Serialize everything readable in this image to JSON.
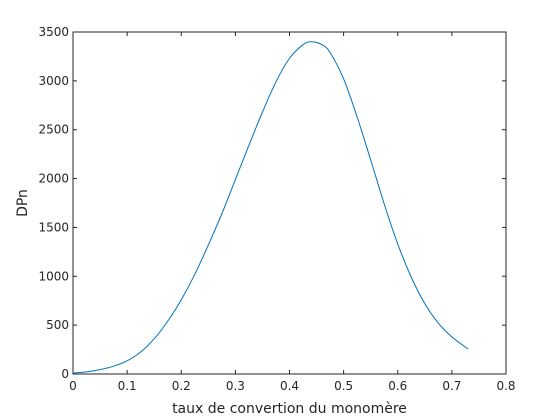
{
  "chart_data": {
    "type": "line",
    "title": "",
    "xlabel": "taux de convertion du monomère",
    "ylabel": "DPn",
    "xlim": [
      0,
      0.8
    ],
    "ylim": [
      0,
      3500
    ],
    "xticks": [
      0,
      0.1,
      0.2,
      0.3,
      0.4,
      0.5,
      0.6,
      0.7,
      0.8
    ],
    "xtick_labels": [
      "0",
      "0.1",
      "0.2",
      "0.3",
      "0.4",
      "0.5",
      "0.6",
      "0.7",
      "0.8"
    ],
    "yticks": [
      0,
      500,
      1000,
      1500,
      2000,
      2500,
      3000,
      3500
    ],
    "ytick_labels": [
      "0",
      "500",
      "1000",
      "1500",
      "2000",
      "2500",
      "3000",
      "3500"
    ],
    "grid": false,
    "line_color": "#0072bd",
    "series": [
      {
        "x": [
          0,
          0.025,
          0.05,
          0.075,
          0.1,
          0.125,
          0.15,
          0.175,
          0.2,
          0.225,
          0.25,
          0.275,
          0.3,
          0.325,
          0.35,
          0.375,
          0.4,
          0.425,
          0.44,
          0.46,
          0.475,
          0.5,
          0.525,
          0.55,
          0.575,
          0.6,
          0.625,
          0.65,
          0.675,
          0.7,
          0.73
        ],
        "y": [
          10,
          22,
          45,
          80,
          135,
          225,
          360,
          540,
          760,
          1020,
          1320,
          1640,
          1990,
          2340,
          2680,
          2990,
          3230,
          3370,
          3400,
          3370,
          3290,
          3020,
          2630,
          2190,
          1740,
          1330,
          990,
          720,
          520,
          380,
          255
        ]
      }
    ]
  }
}
